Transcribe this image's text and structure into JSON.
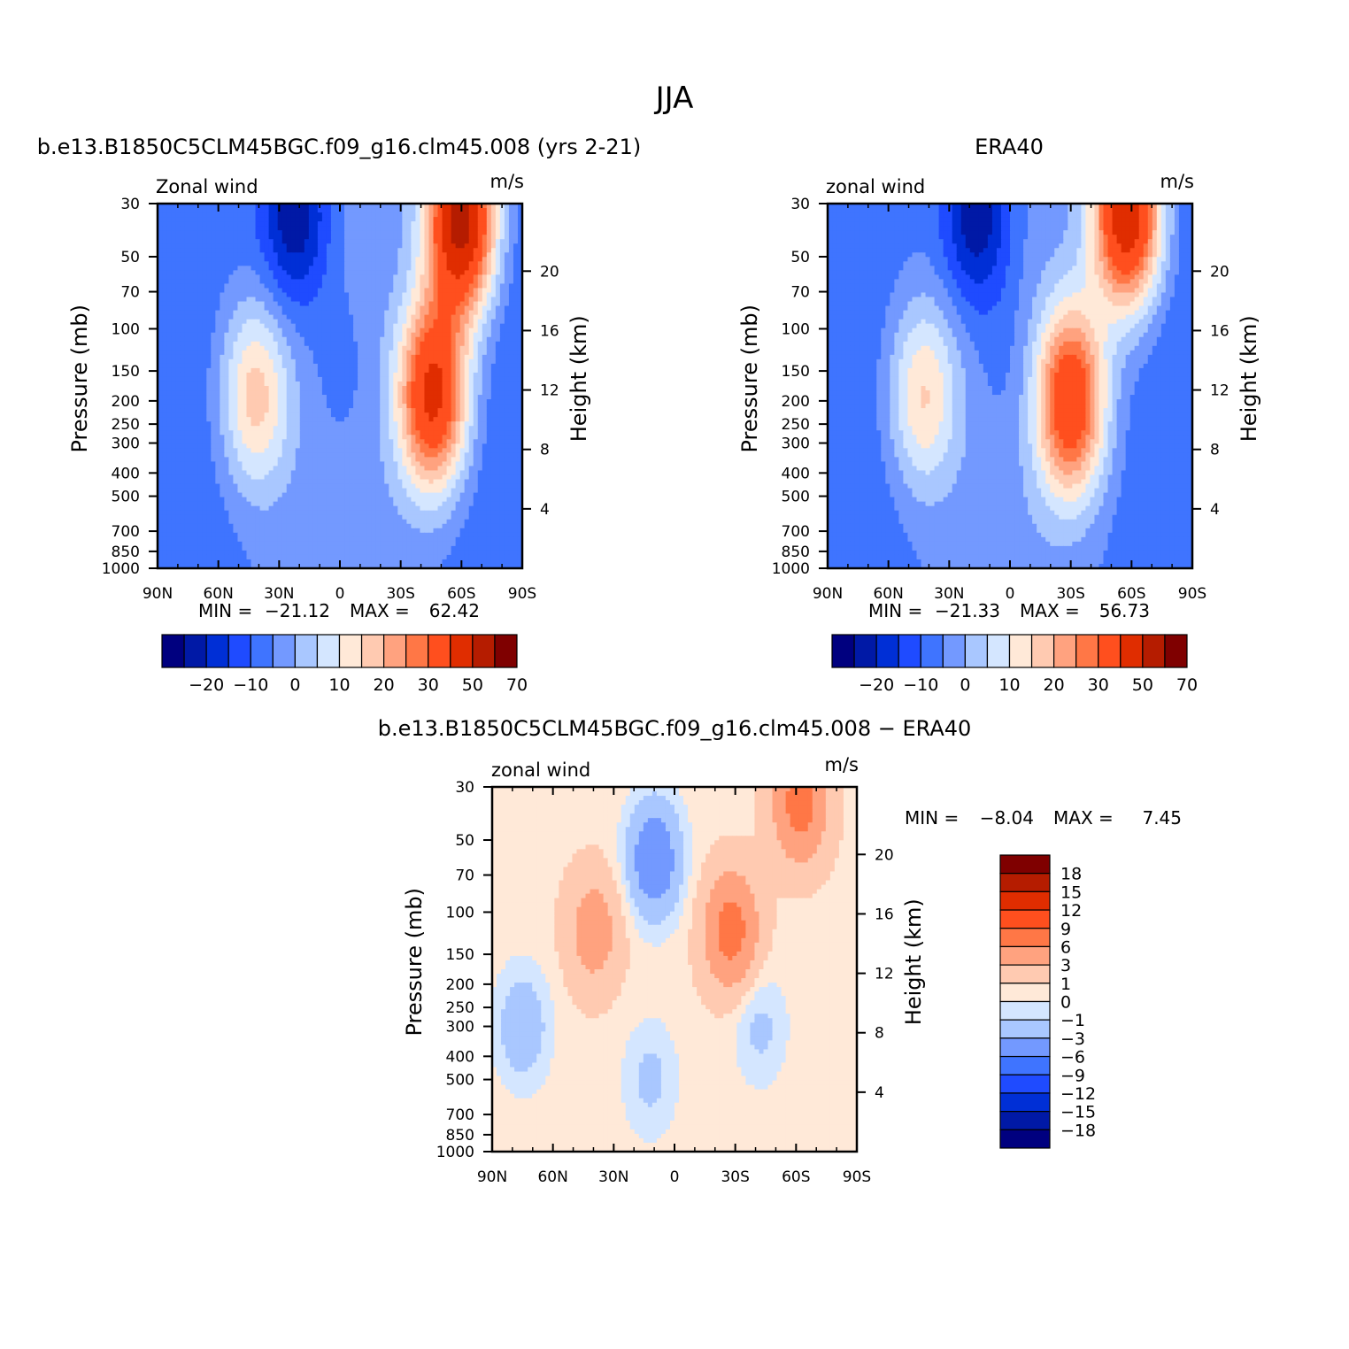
{
  "figure": {
    "title": "JJA"
  },
  "colors": {
    "full_palette": [
      "#00007f",
      "#0019a6",
      "#002fd6",
      "#1f4bff",
      "#3f74ff",
      "#7399ff",
      "#a9c7ff",
      "#d4e6ff",
      "#ffe9d8",
      "#ffcab1",
      "#ffa27f",
      "#ff7746",
      "#ff4f1e",
      "#e02d00",
      "#b51c00",
      "#7f0000"
    ],
    "diff_palette": [
      "#00007f",
      "#0019a6",
      "#002fd6",
      "#1f4bff",
      "#3f74ff",
      "#7399ff",
      "#a9c7ff",
      "#d4e6ff",
      "#ffe9d8",
      "#ffcab1",
      "#ffa27f",
      "#ff7746",
      "#ff4f1e",
      "#e02d00",
      "#b51c00",
      "#7f0000"
    ]
  },
  "chart_data": [
    {
      "type": "heatmap",
      "title": "b.e13.B1850C5CLM45BGC.f09_g16.clm45.008 (yrs 2-21)",
      "left_string": "Zonal wind",
      "right_string": "m/s",
      "xlabel": "",
      "ylabel": "Pressure (mb)",
      "y2label": "Height (km)",
      "x_ticks": [
        "90N",
        "60N",
        "30N",
        "0",
        "30S",
        "60S",
        "90S"
      ],
      "x_range": [
        90,
        -90
      ],
      "y_ticks": [
        "30",
        "50",
        "70",
        "100",
        "150",
        "200",
        "250",
        "300",
        "400",
        "500",
        "700",
        "850",
        "1000"
      ],
      "y_tick_values": [
        30,
        50,
        70,
        100,
        150,
        200,
        250,
        300,
        400,
        500,
        700,
        850,
        1000
      ],
      "y_range": [
        1000,
        30
      ],
      "y_scale": "log",
      "y2_ticks": [
        "4",
        "8",
        "12",
        "16",
        "20"
      ],
      "y2_tick_values": [
        4,
        8,
        12,
        16,
        20
      ],
      "min_label": "MIN =",
      "min_value": "−21.12",
      "max_label": "MAX =",
      "max_value": "62.42",
      "colorbar_labels": [
        "−20",
        "−10",
        "0",
        "10",
        "20",
        "30",
        "50",
        "70"
      ],
      "colorbar_orientation": "horizontal",
      "features": [
        {
          "lat": 0,
          "p": 150,
          "v": -4
        },
        {
          "lat": 42,
          "p": 190,
          "v": 23
        },
        {
          "lat": 22,
          "p": 33,
          "v": -21
        },
        {
          "lat": -46,
          "p": 190,
          "v": 49
        },
        {
          "lat": -60,
          "p": 35,
          "v": 62
        }
      ]
    },
    {
      "type": "heatmap",
      "title": "ERA40",
      "left_string": "zonal wind",
      "right_string": "m/s",
      "xlabel": "",
      "ylabel": "Pressure (mb)",
      "y2label": "Height (km)",
      "x_ticks": [
        "90N",
        "60N",
        "30N",
        "0",
        "30S",
        "60S",
        "90S"
      ],
      "x_range": [
        90,
        -90
      ],
      "y_ticks": [
        "30",
        "50",
        "70",
        "100",
        "150",
        "200",
        "250",
        "300",
        "400",
        "500",
        "700",
        "850",
        "1000"
      ],
      "y_tick_values": [
        30,
        50,
        70,
        100,
        150,
        200,
        250,
        300,
        400,
        500,
        700,
        850,
        1000
      ],
      "y_range": [
        1000,
        30
      ],
      "y_scale": "log",
      "y2_ticks": [
        "4",
        "8",
        "12",
        "16",
        "20"
      ],
      "y2_tick_values": [
        4,
        8,
        12,
        16,
        20
      ],
      "min_label": "MIN =",
      "min_value": "−21.33",
      "max_label": "MAX =",
      "max_value": "56.73",
      "colorbar_labels": [
        "−20",
        "−10",
        "0",
        "10",
        "20",
        "30",
        "50",
        "70"
      ],
      "colorbar_orientation": "horizontal",
      "features": [
        {
          "lat": 0,
          "p": 150,
          "v": -4
        },
        {
          "lat": 43,
          "p": 190,
          "v": 21
        },
        {
          "lat": 16,
          "p": 33,
          "v": -21
        },
        {
          "lat": -30,
          "p": 200,
          "v": 44
        },
        {
          "lat": -58,
          "p": 33,
          "v": 56
        }
      ]
    },
    {
      "type": "heatmap",
      "title": "b.e13.B1850C5CLM45BGC.f09_g16.clm45.008 − ERA40",
      "left_string": "zonal wind",
      "right_string": "m/s",
      "xlabel": "",
      "ylabel": "Pressure (mb)",
      "y2label": "Height (km)",
      "x_ticks": [
        "90N",
        "60N",
        "30N",
        "0",
        "30S",
        "60S",
        "90S"
      ],
      "x_range": [
        90,
        -90
      ],
      "y_ticks": [
        "30",
        "50",
        "70",
        "100",
        "150",
        "200",
        "250",
        "300",
        "400",
        "500",
        "700",
        "850",
        "1000"
      ],
      "y_tick_values": [
        30,
        50,
        70,
        100,
        150,
        200,
        250,
        300,
        400,
        500,
        700,
        850,
        1000
      ],
      "y_range": [
        1000,
        30
      ],
      "y_scale": "log",
      "y2_ticks": [
        "4",
        "8",
        "12",
        "16",
        "20"
      ],
      "y2_tick_values": [
        4,
        8,
        12,
        16,
        20
      ],
      "min_label": "MIN =",
      "min_value": "−8.04",
      "max_label": "MAX =",
      "max_value": "7.45",
      "colorbar_labels": [
        "18",
        "15",
        "12",
        "9",
        "6",
        "3",
        "1",
        "0",
        "−1",
        "−3",
        "−6",
        "−9",
        "−12",
        "−15",
        "−18"
      ],
      "colorbar_orientation": "vertical",
      "features": [
        {
          "lat": 40,
          "p": 120,
          "v": 4
        },
        {
          "lat": 10,
          "p": 60,
          "v": -6
        },
        {
          "lat": -28,
          "p": 120,
          "v": 7
        },
        {
          "lat": -62,
          "p": 35,
          "v": 7
        },
        {
          "lat": 75,
          "p": 300,
          "v": -3
        },
        {
          "lat": -42,
          "p": 300,
          "v": -2
        },
        {
          "lat": 12,
          "p": 500,
          "v": -2
        }
      ]
    }
  ]
}
